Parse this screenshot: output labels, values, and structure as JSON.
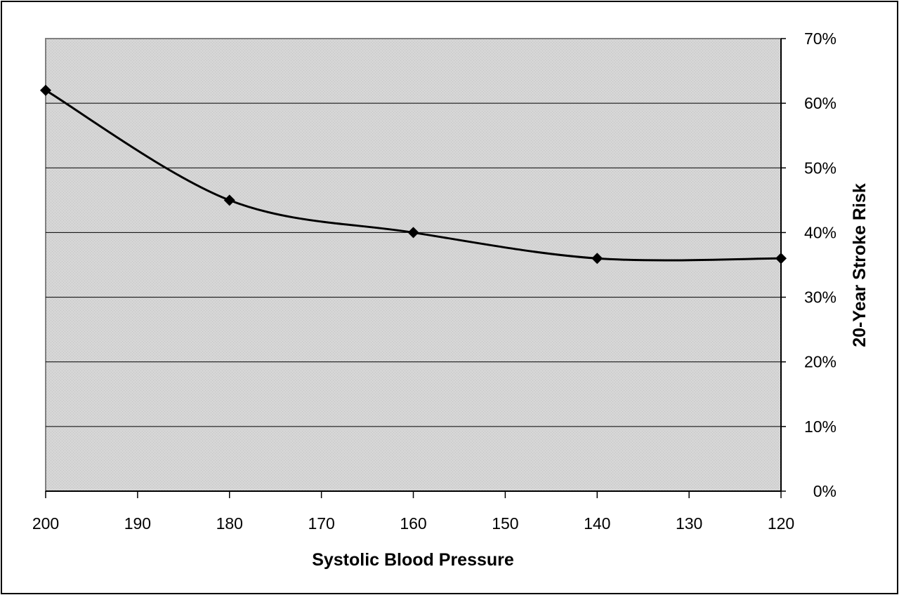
{
  "chart_data": {
    "type": "line",
    "title": "",
    "xlabel": "Systolic Blood Pressure",
    "ylabel": "20-Year Stroke Risk",
    "x_reversed": true,
    "xlim": [
      200,
      120
    ],
    "ylim": [
      0,
      70
    ],
    "x_ticks": [
      200,
      190,
      180,
      170,
      160,
      150,
      140,
      130,
      120
    ],
    "y_ticks": [
      "0%",
      "10%",
      "20%",
      "30%",
      "40%",
      "50%",
      "60%",
      "70%"
    ],
    "y_axis_side": "right",
    "grid": "horizontal",
    "legend": "none",
    "series": [
      {
        "x": [
          200,
          180,
          160,
          140,
          120
        ],
        "y": [
          62,
          45,
          40,
          36,
          36
        ],
        "marker": "diamond",
        "smooth": true
      }
    ],
    "colors": {
      "plot_background": "#d9d9d9",
      "line": "#000000",
      "grid": "#000000"
    }
  }
}
